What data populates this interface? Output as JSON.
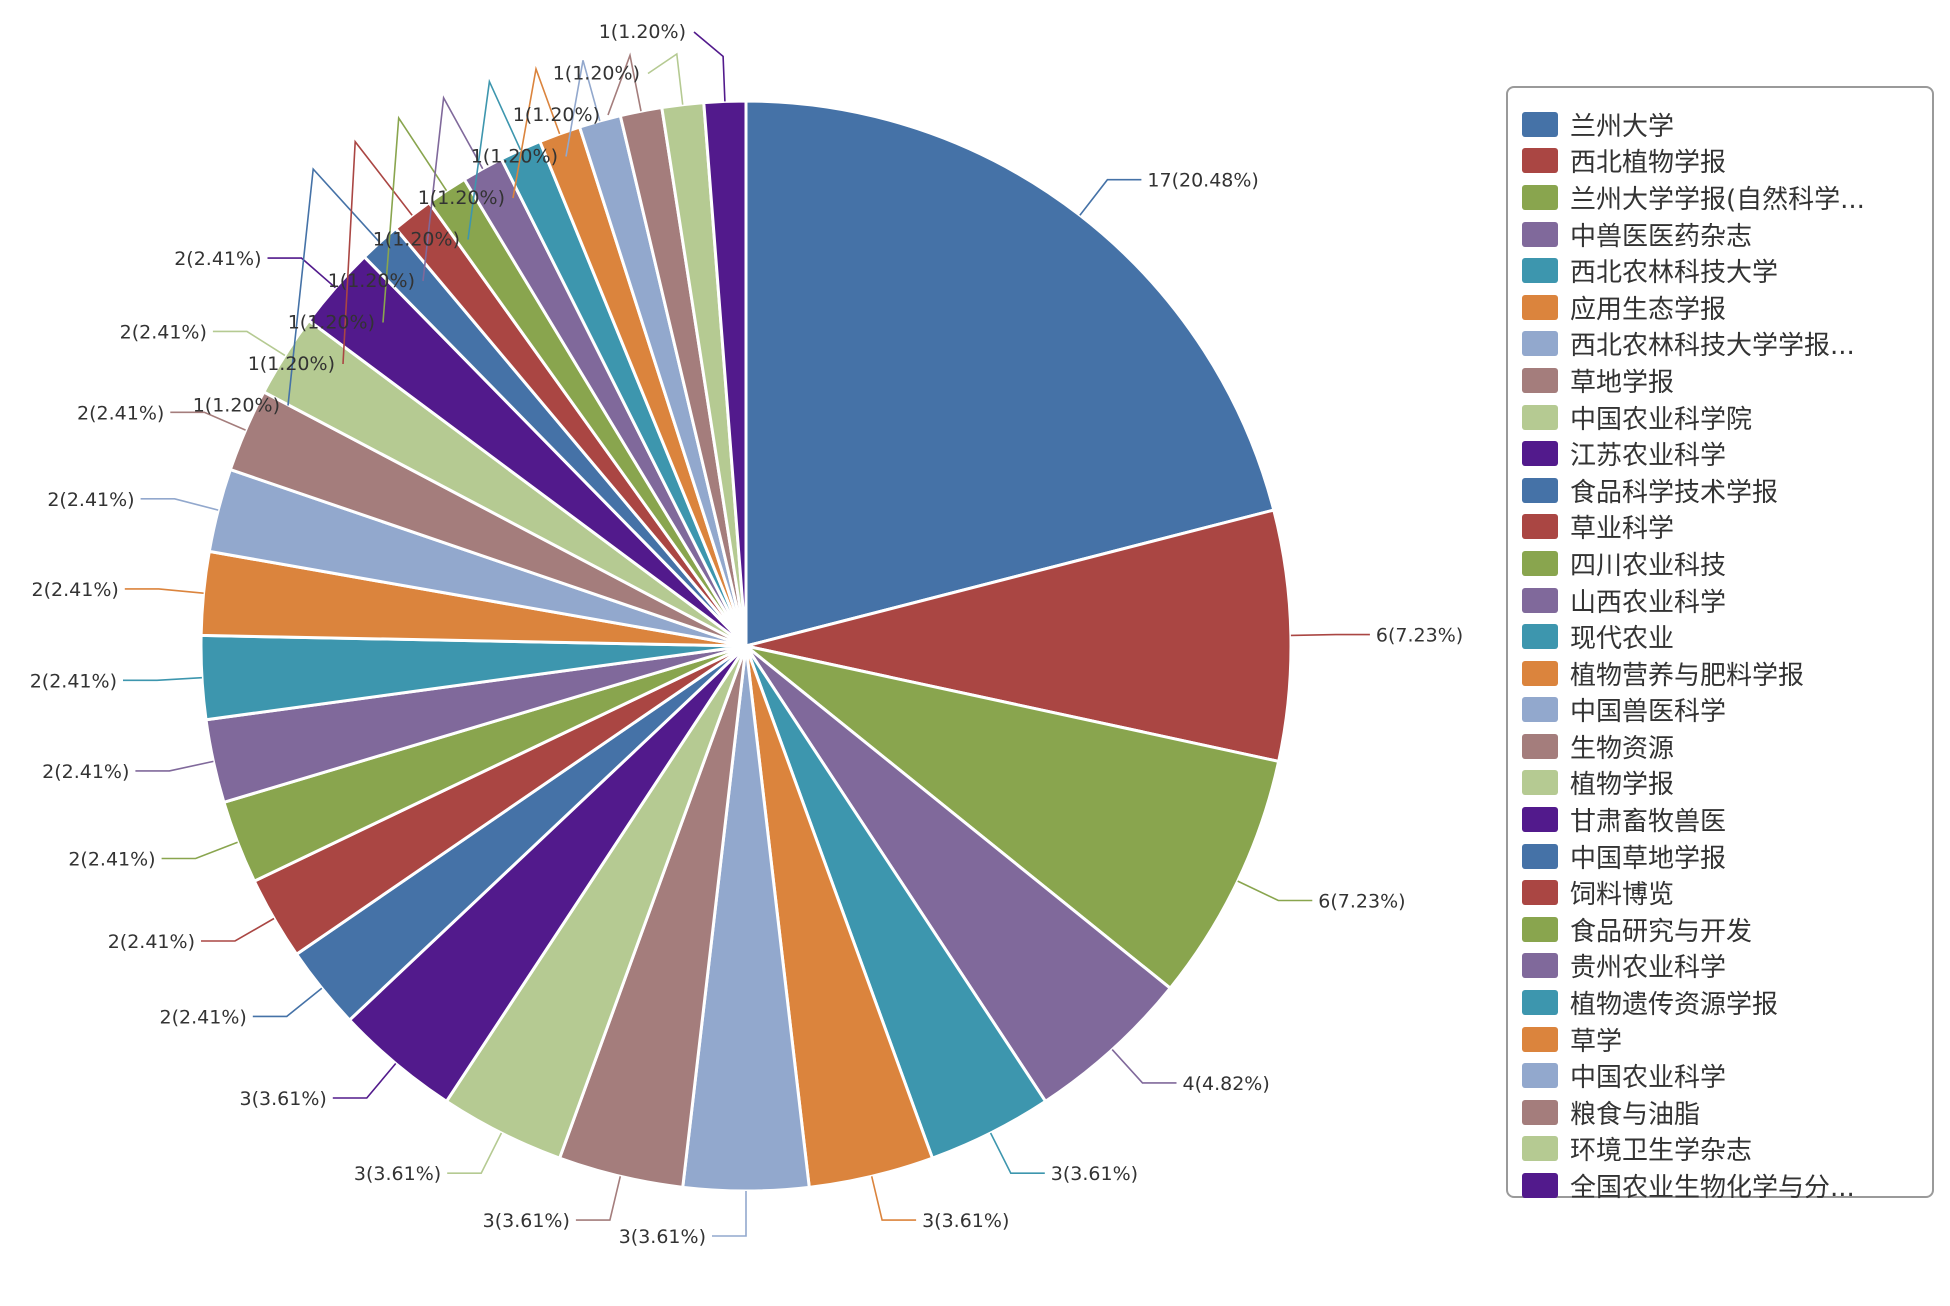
{
  "chart_data": {
    "type": "pie",
    "categories": [
      "兰州大学",
      "西北植物学报",
      "兰州大学学报(自然科学...",
      "中兽医医药杂志",
      "西北农林科技大学",
      "应用生态学报",
      "西北农林科技大学学报...",
      "草地学报",
      "中国农业科学院",
      "江苏农业科学",
      "食品科学技术学报",
      "草业科学",
      "四川农业科技",
      "山西农业科学",
      "现代农业",
      "植物营养与肥料学报",
      "中国兽医科学",
      "生物资源",
      "植物学报",
      "甘肃畜牧兽医",
      "中国草地学报",
      "饲料博览",
      "食品研究与开发",
      "贵州农业科学",
      "植物遗传资源学报",
      "草学",
      "中国农业科学",
      "粮食与油脂",
      "环境卫生学杂志",
      "全国农业生物化学与分..."
    ],
    "values": [
      17,
      6,
      6,
      4,
      3,
      3,
      3,
      3,
      3,
      3,
      2,
      2,
      2,
      2,
      2,
      2,
      2,
      2,
      2,
      2,
      1,
      1,
      1,
      1,
      1,
      1,
      1,
      1,
      1,
      1
    ],
    "data_labels": [
      "17(20.48%)",
      "6(7.23%)",
      "6(7.23%)",
      "4(4.82%)",
      "3(3.61%)",
      "3(3.61%)",
      "3(3.61%)",
      "3(3.61%)",
      "3(3.61%)",
      "3(3.61%)",
      "2(2.41%)",
      "2(2.41%)",
      "2(2.41%)",
      "2(2.41%)",
      "2(2.41%)",
      "2(2.41%)",
      "2(2.41%)",
      "2(2.41%)",
      "2(2.41%)",
      "2(2.41%)",
      "1(1.20%)",
      "1(1.20%)",
      "1(1.20%)",
      "1(1.20%)",
      "1(1.20%)",
      "1(1.20%)",
      "1(1.20%)",
      "1(1.20%)",
      "1(1.20%)",
      "1(1.20%)"
    ],
    "colors": [
      "#4572a7",
      "#aa4643",
      "#89a54e",
      "#80699b",
      "#3d96ae",
      "#db843d",
      "#92a8cd",
      "#a47d7c",
      "#b5ca92",
      "#521a8c"
    ],
    "start_angle": "12 o'clock",
    "direction": "clockwise",
    "legend_position": "right",
    "title": ""
  }
}
